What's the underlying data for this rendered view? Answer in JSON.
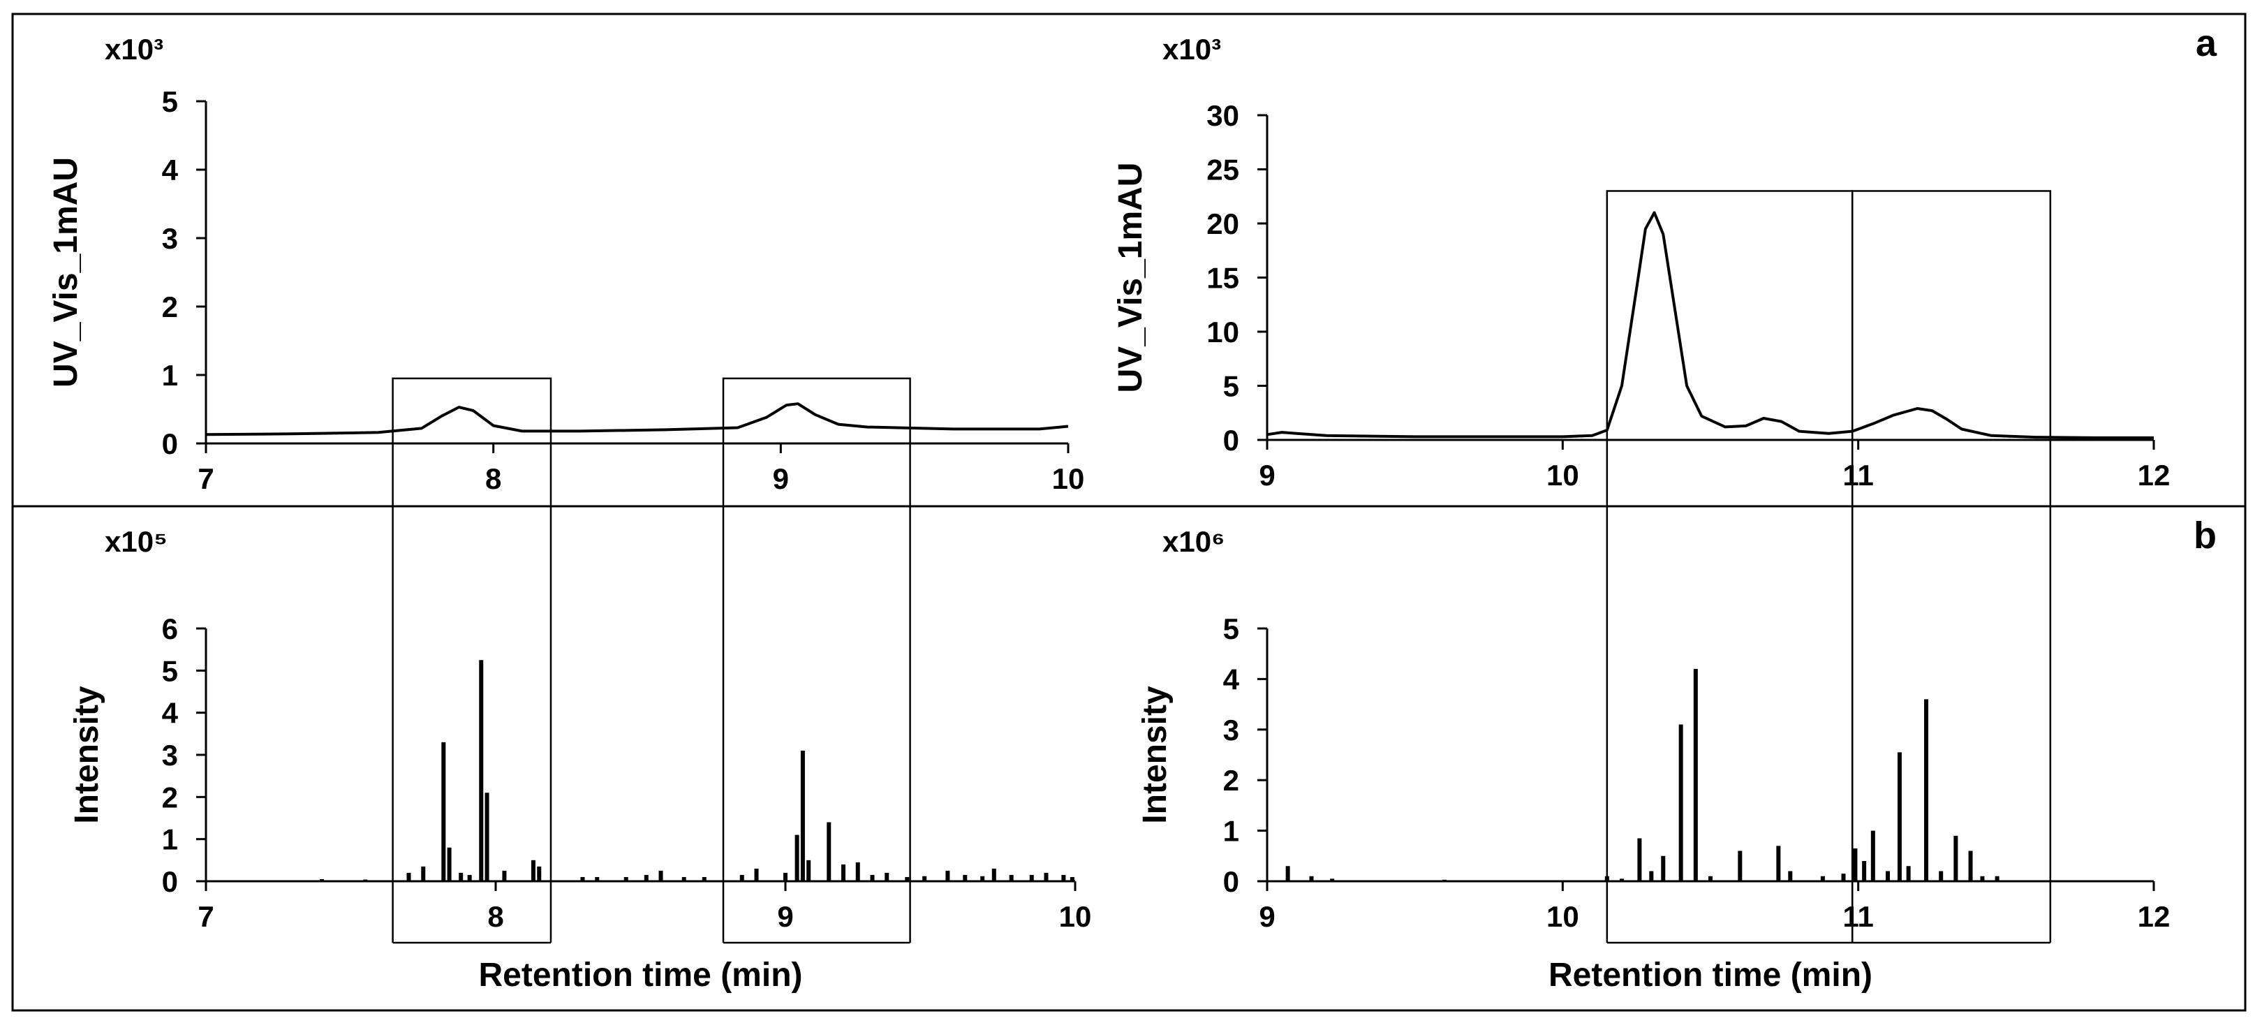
{
  "panel_labels": {
    "top": "a",
    "bottom": "b"
  },
  "shared_xlabel": "Retention time (min)",
  "chart_data": [
    {
      "id": "a-left",
      "type": "line",
      "ylabel": "UV_Vis_1mAU",
      "y_multiplier": "x10³",
      "xlim": [
        7,
        10
      ],
      "ylim": [
        0,
        5
      ],
      "xticks": [
        7,
        8,
        9,
        10
      ],
      "yticks": [
        0,
        1,
        2,
        3,
        4,
        5
      ],
      "series": [
        {
          "name": "UV trace",
          "x": [
            7.0,
            7.3,
            7.6,
            7.75,
            7.82,
            7.88,
            7.93,
            8.0,
            8.1,
            8.3,
            8.6,
            8.85,
            8.95,
            9.02,
            9.06,
            9.12,
            9.2,
            9.3,
            9.6,
            9.9,
            10.0
          ],
          "y": [
            0.13,
            0.14,
            0.16,
            0.22,
            0.4,
            0.53,
            0.48,
            0.26,
            0.18,
            0.18,
            0.2,
            0.23,
            0.38,
            0.56,
            0.58,
            0.42,
            0.28,
            0.24,
            0.21,
            0.21,
            0.25
          ]
        }
      ],
      "boxes": [
        {
          "x": [
            7.65,
            8.2
          ],
          "y_top": 0.95
        },
        {
          "x": [
            8.8,
            9.45
          ],
          "y_top": 0.95
        }
      ]
    },
    {
      "id": "a-right",
      "type": "line",
      "ylabel": "UV_Vis_1mAU",
      "y_multiplier": "x10³",
      "xlim": [
        9,
        12
      ],
      "ylim": [
        0,
        30
      ],
      "xticks": [
        9,
        10,
        11,
        12
      ],
      "yticks": [
        0,
        5,
        10,
        15,
        20,
        25,
        30
      ],
      "series": [
        {
          "name": "UV trace",
          "x": [
            9.0,
            9.05,
            9.1,
            9.2,
            9.5,
            9.8,
            10.0,
            10.1,
            10.15,
            10.2,
            10.25,
            10.28,
            10.31,
            10.34,
            10.38,
            10.42,
            10.47,
            10.55,
            10.62,
            10.68,
            10.74,
            10.8,
            10.9,
            10.98,
            11.05,
            11.12,
            11.2,
            11.25,
            11.3,
            11.35,
            11.45,
            11.6,
            11.8,
            12.0
          ],
          "y": [
            0.5,
            0.7,
            0.6,
            0.4,
            0.3,
            0.3,
            0.3,
            0.4,
            0.9,
            5.0,
            14.0,
            19.5,
            21.0,
            19.0,
            12.0,
            5.0,
            2.2,
            1.2,
            1.3,
            2.0,
            1.7,
            0.8,
            0.6,
            0.8,
            1.5,
            2.3,
            2.9,
            2.7,
            1.9,
            1.0,
            0.4,
            0.25,
            0.2,
            0.2
          ]
        }
      ],
      "boxes": [
        {
          "x": [
            10.15,
            10.98
          ],
          "y_top": 23
        },
        {
          "x": [
            10.98,
            11.65
          ],
          "y_top": 23
        }
      ]
    },
    {
      "id": "b-left",
      "type": "bar",
      "ylabel": "Intensity",
      "y_multiplier": "x10⁵",
      "xlabel": "Retention time (min)",
      "xlim": [
        7,
        10
      ],
      "ylim": [
        0,
        6
      ],
      "xticks": [
        7,
        8,
        9,
        10
      ],
      "yticks": [
        0,
        1,
        2,
        3,
        4,
        5,
        6
      ],
      "peaks_x": [
        7.4,
        7.55,
        7.7,
        7.75,
        7.82,
        7.84,
        7.88,
        7.91,
        7.95,
        7.97,
        8.03,
        8.13,
        8.15,
        8.3,
        8.35,
        8.45,
        8.52,
        8.57,
        8.65,
        8.72,
        8.85,
        8.9,
        9.0,
        9.04,
        9.06,
        9.08,
        9.15,
        9.2,
        9.25,
        9.3,
        9.35,
        9.42,
        9.48,
        9.56,
        9.62,
        9.68,
        9.72,
        9.78,
        9.85,
        9.9,
        9.96,
        9.99
      ],
      "peaks_y": [
        0.05,
        0.04,
        0.2,
        0.35,
        3.3,
        0.8,
        0.2,
        0.15,
        5.25,
        2.1,
        0.25,
        0.5,
        0.35,
        0.1,
        0.1,
        0.1,
        0.15,
        0.25,
        0.1,
        0.1,
        0.15,
        0.3,
        0.2,
        1.1,
        3.1,
        0.5,
        1.4,
        0.4,
        0.45,
        0.15,
        0.2,
        0.1,
        0.12,
        0.25,
        0.15,
        0.12,
        0.3,
        0.15,
        0.15,
        0.2,
        0.15,
        0.1
      ],
      "boxes": [
        {
          "x": [
            7.65,
            8.2
          ]
        },
        {
          "x": [
            8.8,
            9.45
          ]
        }
      ]
    },
    {
      "id": "b-right",
      "type": "bar",
      "ylabel": "Intensity",
      "y_multiplier": "x10⁶",
      "xlabel": "Retention time (min)",
      "xlim": [
        9,
        12
      ],
      "ylim": [
        0,
        5
      ],
      "xticks": [
        9,
        10,
        11,
        12
      ],
      "yticks": [
        0,
        1,
        2,
        3,
        4,
        5
      ],
      "peaks_x": [
        9.07,
        9.15,
        9.22,
        9.6,
        10.15,
        10.2,
        10.26,
        10.3,
        10.34,
        10.4,
        10.45,
        10.5,
        10.6,
        10.73,
        10.77,
        10.88,
        10.95,
        10.99,
        11.02,
        11.05,
        11.1,
        11.14,
        11.17,
        11.23,
        11.28,
        11.33,
        11.38,
        11.42,
        11.47
      ],
      "peaks_y": [
        0.3,
        0.1,
        0.05,
        0.03,
        0.1,
        0.05,
        0.85,
        0.2,
        0.5,
        3.1,
        4.2,
        0.1,
        0.6,
        0.7,
        0.2,
        0.1,
        0.15,
        0.65,
        0.4,
        1.0,
        0.2,
        2.55,
        0.3,
        3.6,
        0.2,
        0.9,
        0.6,
        0.1,
        0.1
      ],
      "boxes": [
        {
          "x": [
            10.15,
            10.98
          ]
        },
        {
          "x": [
            10.98,
            11.65
          ]
        }
      ]
    }
  ]
}
